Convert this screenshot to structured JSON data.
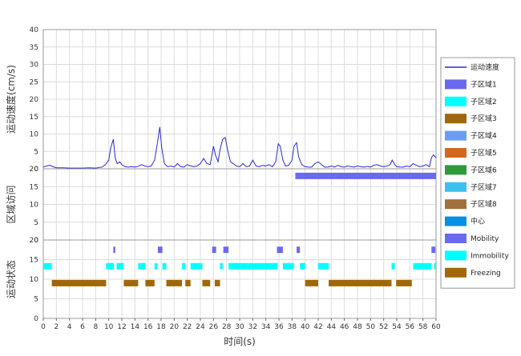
{
  "chart_data": [
    {
      "type": "line",
      "ylabel": "运动速度(cm/s)",
      "ylim": [
        0,
        40
      ],
      "yticks": [
        0,
        5,
        10,
        15,
        20,
        25,
        30,
        35,
        40
      ],
      "xlim": [
        0,
        60
      ],
      "series": [
        {
          "name": "运动速度",
          "color": "#2b2bd6",
          "x": [
            0,
            0.5,
            1,
            1.5,
            2,
            3,
            4,
            5,
            6,
            7,
            8,
            9,
            9.5,
            10,
            10.3,
            10.7,
            11,
            11.3,
            11.7,
            12,
            12.5,
            13,
            13.5,
            14,
            14.5,
            15,
            15.5,
            16,
            16.5,
            17,
            17.4,
            17.8,
            18.1,
            18.5,
            19,
            19.5,
            20,
            20.5,
            21,
            21.5,
            22,
            22.5,
            23,
            23.5,
            24,
            24.5,
            25,
            25.5,
            26,
            26.3,
            26.7,
            27,
            27.4,
            27.8,
            28.2,
            28.6,
            29,
            29.5,
            30,
            30.5,
            31,
            31.5,
            32,
            32.5,
            33,
            33.5,
            34,
            34.5,
            35,
            35.5,
            35.9,
            36.2,
            36.6,
            37,
            37.5,
            38,
            38.3,
            38.7,
            39,
            39.5,
            40,
            40.5,
            41,
            41.5,
            42,
            42.5,
            43,
            43.5,
            44,
            44.5,
            45,
            45.5,
            46,
            46.5,
            47,
            47.5,
            48,
            48.5,
            49,
            49.5,
            50,
            50.5,
            51,
            51.5,
            52,
            52.5,
            53,
            53.3,
            53.7,
            54,
            54.5,
            55,
            55.5,
            56,
            56.5,
            57,
            57.5,
            58,
            58.5,
            59,
            59.3,
            59.6,
            60
          ],
          "values": [
            0.5,
            0.8,
            1.0,
            0.6,
            0.3,
            0.3,
            0.2,
            0.2,
            0.2,
            0.3,
            0.2,
            0.5,
            1.2,
            2.5,
            6,
            8.5,
            3,
            1.5,
            2,
            1.2,
            0.6,
            0.5,
            0.6,
            0.5,
            0.7,
            1.2,
            0.8,
            0.6,
            0.8,
            2.5,
            7,
            12,
            6,
            1.5,
            0.6,
            0.8,
            0.5,
            1.5,
            0.6,
            0.5,
            1.2,
            0.8,
            0.6,
            0.8,
            1.5,
            3,
            1.5,
            1.2,
            6.5,
            4,
            2,
            5.5,
            8.5,
            9,
            5,
            2,
            1.5,
            0.8,
            0.6,
            1.5,
            0.6,
            0.8,
            2.5,
            0.8,
            0.6,
            1,
            0.8,
            1.2,
            0.6,
            2,
            7.2,
            6.5,
            2.5,
            0.8,
            1,
            2.5,
            6.5,
            7.5,
            3.5,
            1.2,
            0.6,
            0.5,
            0.5,
            1.5,
            2,
            1.2,
            0.5,
            0.5,
            0.8,
            0.5,
            1,
            0.6,
            0.5,
            0.8,
            0.6,
            0.5,
            0.8,
            0.6,
            0.5,
            0.7,
            0.5,
            1,
            1.2,
            0.8,
            0.6,
            0.8,
            1.2,
            2.5,
            1.2,
            0.6,
            0.5,
            0.5,
            0.8,
            0.6,
            1.5,
            1,
            0.6,
            0.8,
            1.2,
            0.6,
            3.2,
            4,
            3.2
          ]
        }
      ]
    },
    {
      "type": "bar",
      "ylabel": "区域访问",
      "ylim": [
        0,
        20
      ],
      "yticks": [
        0,
        5,
        10,
        15,
        20
      ],
      "xlim": [
        0,
        60
      ],
      "segments": [
        {
          "series": "子区域1",
          "start": 38.5,
          "end": 60,
          "y": 18,
          "color": "#6a6aee"
        }
      ]
    },
    {
      "type": "bar",
      "ylabel": "运动状态",
      "xlabel": "时间(s)",
      "ylim": [
        0,
        20
      ],
      "yticks": [
        0,
        5,
        10,
        15,
        20
      ],
      "xlim": [
        0,
        60
      ],
      "xticks": [
        0,
        2,
        4,
        6,
        8,
        10,
        12,
        14,
        16,
        18,
        20,
        22,
        24,
        26,
        28,
        30,
        32,
        34,
        36,
        38,
        40,
        42,
        44,
        46,
        48,
        50,
        52,
        54,
        56,
        58,
        60
      ],
      "segments": [
        {
          "series": "Mobility",
          "start": 10.7,
          "end": 11.0,
          "y": 17.5,
          "color": "#6a6aee"
        },
        {
          "series": "Mobility",
          "start": 17.5,
          "end": 18.2,
          "y": 17.5,
          "color": "#6a6aee"
        },
        {
          "series": "Mobility",
          "start": 25.8,
          "end": 26.4,
          "y": 17.5,
          "color": "#6a6aee"
        },
        {
          "series": "Mobility",
          "start": 27.5,
          "end": 28.3,
          "y": 17.5,
          "color": "#6a6aee"
        },
        {
          "series": "Mobility",
          "start": 35.7,
          "end": 36.6,
          "y": 17.5,
          "color": "#6a6aee"
        },
        {
          "series": "Mobility",
          "start": 38.7,
          "end": 39.2,
          "y": 17.5,
          "color": "#6a6aee"
        },
        {
          "series": "Mobility",
          "start": 59.3,
          "end": 59.9,
          "y": 17.5,
          "color": "#6a6aee"
        },
        {
          "series": "Immobility",
          "start": 0,
          "end": 1.3,
          "y": 13.3,
          "color": "#00ffff"
        },
        {
          "series": "Immobility",
          "start": 9.6,
          "end": 10.8,
          "y": 13.3,
          "color": "#00ffff"
        },
        {
          "series": "Immobility",
          "start": 11.2,
          "end": 12.3,
          "y": 13.3,
          "color": "#00ffff"
        },
        {
          "series": "Immobility",
          "start": 14.5,
          "end": 15.6,
          "y": 13.3,
          "color": "#00ffff"
        },
        {
          "series": "Immobility",
          "start": 17.0,
          "end": 17.4,
          "y": 13.3,
          "color": "#00ffff"
        },
        {
          "series": "Immobility",
          "start": 18.2,
          "end": 18.8,
          "y": 13.3,
          "color": "#00ffff"
        },
        {
          "series": "Immobility",
          "start": 21.2,
          "end": 21.7,
          "y": 13.3,
          "color": "#00ffff"
        },
        {
          "series": "Immobility",
          "start": 22.5,
          "end": 24.3,
          "y": 13.3,
          "color": "#00ffff"
        },
        {
          "series": "Immobility",
          "start": 27.0,
          "end": 27.4,
          "y": 13.3,
          "color": "#00ffff"
        },
        {
          "series": "Immobility",
          "start": 28.3,
          "end": 35.8,
          "y": 13.3,
          "color": "#00ffff"
        },
        {
          "series": "Immobility",
          "start": 36.6,
          "end": 38.3,
          "y": 13.3,
          "color": "#00ffff"
        },
        {
          "series": "Immobility",
          "start": 39.2,
          "end": 40.0,
          "y": 13.3,
          "color": "#00ffff"
        },
        {
          "series": "Immobility",
          "start": 42.0,
          "end": 43.6,
          "y": 13.3,
          "color": "#00ffff"
        },
        {
          "series": "Immobility",
          "start": 53.2,
          "end": 53.7,
          "y": 13.3,
          "color": "#00ffff"
        },
        {
          "series": "Immobility",
          "start": 56.5,
          "end": 59.3,
          "y": 13.3,
          "color": "#00ffff"
        },
        {
          "series": "Immobility",
          "start": 59.7,
          "end": 60.0,
          "y": 13.3,
          "color": "#00ffff"
        },
        {
          "series": "Freezing",
          "start": 1.3,
          "end": 9.6,
          "y": 9.0,
          "color": "#a0680a"
        },
        {
          "series": "Freezing",
          "start": 12.3,
          "end": 14.5,
          "y": 9.0,
          "color": "#a0680a"
        },
        {
          "series": "Freezing",
          "start": 15.6,
          "end": 17.0,
          "y": 9.0,
          "color": "#a0680a"
        },
        {
          "series": "Freezing",
          "start": 18.8,
          "end": 21.2,
          "y": 9.0,
          "color": "#a0680a"
        },
        {
          "series": "Freezing",
          "start": 21.7,
          "end": 22.5,
          "y": 9.0,
          "color": "#a0680a"
        },
        {
          "series": "Freezing",
          "start": 24.3,
          "end": 25.5,
          "y": 9.0,
          "color": "#a0680a"
        },
        {
          "series": "Freezing",
          "start": 26.2,
          "end": 27.0,
          "y": 9.0,
          "color": "#a0680a"
        },
        {
          "series": "Freezing",
          "start": 40.0,
          "end": 42.0,
          "y": 9.0,
          "color": "#a0680a"
        },
        {
          "series": "Freezing",
          "start": 43.6,
          "end": 53.2,
          "y": 9.0,
          "color": "#a0680a"
        },
        {
          "series": "Freezing",
          "start": 53.9,
          "end": 56.3,
          "y": 9.0,
          "color": "#a0680a"
        }
      ]
    }
  ],
  "legend": {
    "placement": "right",
    "items": [
      {
        "label": "运动速度",
        "kind": "line",
        "color": "#2b2bd6"
      },
      {
        "label": "子区域1",
        "kind": "box",
        "color": "#6a6aee"
      },
      {
        "label": "子区域2",
        "kind": "box",
        "color": "#00ffff"
      },
      {
        "label": "子区域3",
        "kind": "box",
        "color": "#a0680a"
      },
      {
        "label": "子区域4",
        "kind": "box",
        "color": "#6a9ef0"
      },
      {
        "label": "子区域5",
        "kind": "box",
        "color": "#d2691e"
      },
      {
        "label": "子区域6",
        "kind": "box",
        "color": "#2e9a3a"
      },
      {
        "label": "子区域7",
        "kind": "box",
        "color": "#3cc0f0"
      },
      {
        "label": "子区域8",
        "kind": "box",
        "color": "#a0703c"
      },
      {
        "label": "中心",
        "kind": "box",
        "color": "#0a90e0"
      },
      {
        "label": "Mobility",
        "kind": "box",
        "color": "#6a6aee"
      },
      {
        "label": "Immobility",
        "kind": "box",
        "color": "#00ffff"
      },
      {
        "label": "Freezing",
        "kind": "box",
        "color": "#a0680a"
      }
    ]
  }
}
